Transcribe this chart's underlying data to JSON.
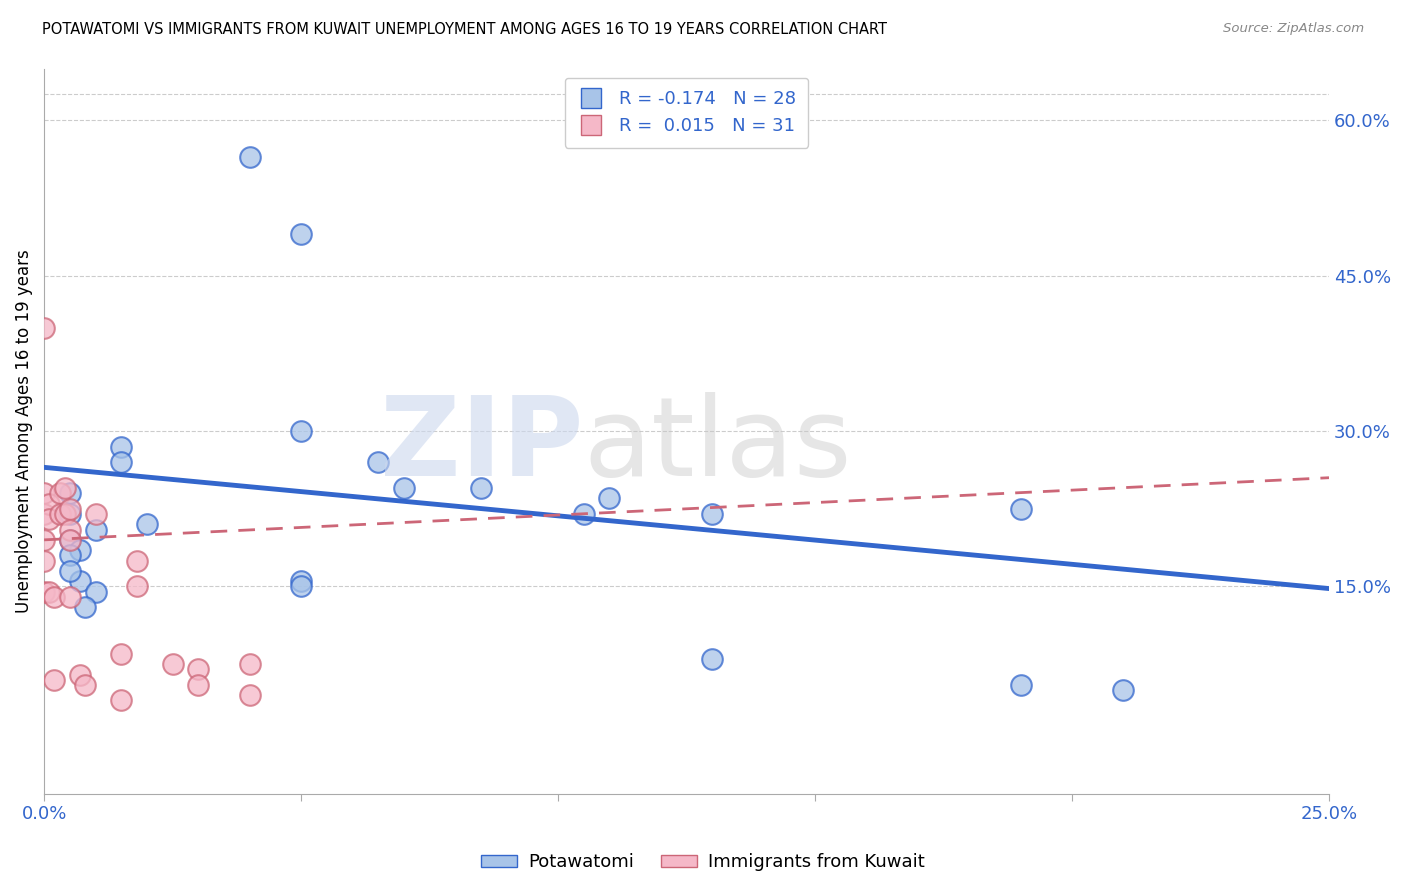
{
  "title": "POTAWATOMI VS IMMIGRANTS FROM KUWAIT UNEMPLOYMENT AMONG AGES 16 TO 19 YEARS CORRELATION CHART",
  "source": "Source: ZipAtlas.com",
  "ylabel": "Unemployment Among Ages 16 to 19 years",
  "xlim": [
    0.0,
    0.25
  ],
  "ylim": [
    -0.05,
    0.65
  ],
  "xticks": [
    0.0,
    0.05,
    0.1,
    0.15,
    0.2,
    0.25
  ],
  "xtick_labels": [
    "0.0%",
    "",
    "",
    "",
    "",
    "25.0%"
  ],
  "yticks_right": [
    0.15,
    0.3,
    0.45,
    0.6
  ],
  "ytick_labels_right": [
    "15.0%",
    "30.0%",
    "45.0%",
    "60.0%"
  ],
  "blue_R": -0.174,
  "blue_N": 28,
  "pink_R": 0.015,
  "pink_N": 31,
  "legend_label_blue": "Potawatomi",
  "legend_label_pink": "Immigrants from Kuwait",
  "blue_color": "#a8c4e8",
  "pink_color": "#f5b8c8",
  "blue_line_color": "#3366cc",
  "pink_line_color": "#cc6677",
  "blue_scatter_x": [
    0.01,
    0.02,
    0.005,
    0.005,
    0.005,
    0.007,
    0.007,
    0.01,
    0.015,
    0.015,
    0.04,
    0.05,
    0.05,
    0.065,
    0.07,
    0.085,
    0.11,
    0.19,
    0.005,
    0.005,
    0.008,
    0.05,
    0.05,
    0.105,
    0.13,
    0.13,
    0.19,
    0.21
  ],
  "blue_scatter_y": [
    0.205,
    0.21,
    0.24,
    0.22,
    0.195,
    0.185,
    0.155,
    0.145,
    0.285,
    0.27,
    0.565,
    0.49,
    0.3,
    0.27,
    0.245,
    0.245,
    0.235,
    0.225,
    0.18,
    0.165,
    0.13,
    0.155,
    0.15,
    0.22,
    0.22,
    0.08,
    0.055,
    0.05
  ],
  "pink_scatter_x": [
    0.0,
    0.0,
    0.0,
    0.0,
    0.0,
    0.0,
    0.001,
    0.001,
    0.001,
    0.002,
    0.002,
    0.003,
    0.003,
    0.004,
    0.004,
    0.005,
    0.005,
    0.005,
    0.005,
    0.007,
    0.008,
    0.01,
    0.015,
    0.015,
    0.018,
    0.018,
    0.025,
    0.03,
    0.03,
    0.04,
    0.04
  ],
  "pink_scatter_y": [
    0.4,
    0.24,
    0.22,
    0.195,
    0.175,
    0.145,
    0.23,
    0.215,
    0.145,
    0.14,
    0.06,
    0.24,
    0.22,
    0.245,
    0.22,
    0.225,
    0.205,
    0.195,
    0.14,
    0.065,
    0.055,
    0.22,
    0.085,
    0.04,
    0.175,
    0.15,
    0.075,
    0.07,
    0.055,
    0.075,
    0.045
  ],
  "background_color": "#ffffff",
  "grid_color": "#cccccc"
}
